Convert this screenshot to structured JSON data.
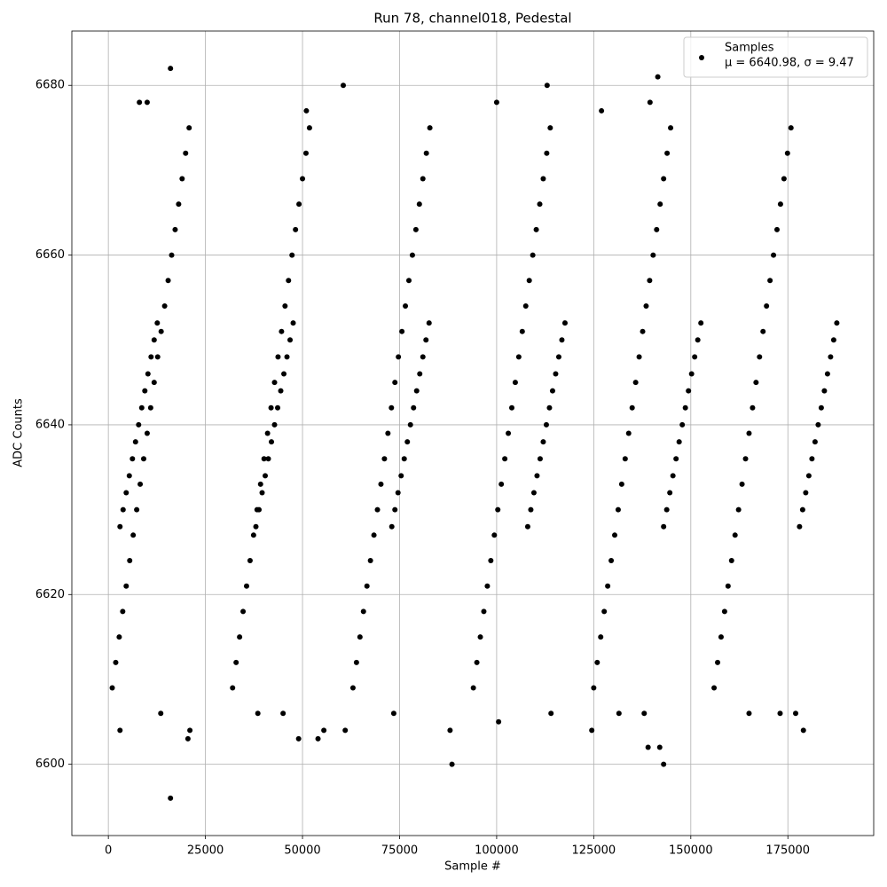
{
  "chart_data": {
    "type": "scatter",
    "title": "Run 78, channel018, Pedestal",
    "x_label": "Sample #",
    "y_label": "ADC Counts",
    "xlim": [
      -9400,
      197100
    ],
    "ylim": [
      6591.6,
      6686.4
    ],
    "xticks": [
      0,
      25000,
      50000,
      75000,
      100000,
      125000,
      150000,
      175000
    ],
    "yticks": [
      6600,
      6620,
      6640,
      6660,
      6680
    ],
    "grid": true,
    "legend": "upper right",
    "legend_note": "μ = 6640.98, σ = 9.47",
    "series": [
      {
        "name": "Samples",
        "color": "#000000",
        "x": [
          16000,
          60500,
          113000,
          141500,
          100000,
          8000,
          10000,
          139500,
          127000,
          51000,
          16000,
          88500,
          143000,
          139000,
          142000,
          20500,
          21000,
          3000,
          55500,
          61000,
          88000,
          124500,
          179000,
          49000,
          54000,
          100500,
          13500,
          38500,
          45000,
          73500,
          114000,
          131500,
          138000,
          165000,
          173000,
          177000,
          1000,
          32000,
          63000,
          94000,
          125000,
          156000,
          1900,
          32900,
          63900,
          94900,
          125900,
          156900,
          2800,
          33800,
          64800,
          95800,
          126800,
          157800,
          3700,
          34700,
          65700,
          96700,
          127700,
          158700,
          4600,
          35600,
          66600,
          97600,
          128600,
          159600,
          5500,
          36500,
          67500,
          98500,
          129500,
          160500,
          6400,
          37400,
          68400,
          99400,
          130400,
          161400,
          7300,
          38300,
          69300,
          100300,
          131300,
          162300,
          8200,
          39200,
          70200,
          101200,
          132200,
          163200,
          9100,
          40100,
          71100,
          102100,
          133100,
          164100,
          10000,
          41000,
          72000,
          103000,
          134000,
          165000,
          10900,
          41900,
          72900,
          103900,
          134900,
          165900,
          11800,
          42800,
          73800,
          104800,
          135800,
          166800,
          12700,
          43700,
          74700,
          105700,
          136700,
          167700,
          13600,
          44600,
          75600,
          106600,
          137600,
          168600,
          14500,
          45500,
          76500,
          107500,
          138500,
          169500,
          15400,
          46400,
          77400,
          108400,
          139400,
          170400,
          16300,
          47300,
          78300,
          109300,
          140300,
          171300,
          17200,
          48200,
          79200,
          110200,
          141200,
          172200,
          18100,
          49100,
          80100,
          111100,
          142100,
          173100,
          19000,
          50000,
          81000,
          112000,
          143000,
          174000,
          19900,
          50900,
          81900,
          112900,
          143900,
          174900,
          20800,
          51800,
          82800,
          113800,
          144800,
          175800,
          3000,
          38000,
          73000,
          108000,
          143000,
          178000,
          3800,
          38800,
          73800,
          108800,
          143800,
          178800,
          4600,
          39600,
          74600,
          109600,
          144600,
          179600,
          5400,
          40400,
          75400,
          110400,
          145400,
          180400,
          6200,
          41200,
          76200,
          111200,
          146200,
          181200,
          7000,
          42000,
          77000,
          112000,
          147000,
          182000,
          7800,
          42800,
          77800,
          112800,
          147800,
          182800,
          8600,
          43600,
          78600,
          113600,
          148600,
          183600,
          9400,
          44400,
          79400,
          114400,
          149400,
          184400,
          10200,
          45200,
          80200,
          115200,
          150200,
          185200,
          11000,
          46000,
          81000,
          116000,
          151000,
          186000,
          11800,
          46800,
          81800,
          116800,
          151800,
          186800,
          12600,
          47600,
          82600,
          117600,
          152600,
          187600
        ],
        "values": [
          6682,
          6680,
          6680,
          6681,
          6678,
          6678,
          6678,
          6678,
          6677,
          6677,
          6596,
          6600,
          6600,
          6602,
          6602,
          6603,
          6604,
          6604,
          6604,
          6604,
          6604,
          6604,
          6604,
          6603,
          6603,
          6605,
          6606,
          6606,
          6606,
          6606,
          6606,
          6606,
          6606,
          6606,
          6606,
          6606,
          6609,
          6609,
          6609,
          6609,
          6609,
          6609,
          6612,
          6612,
          6612,
          6612,
          6612,
          6612,
          6615,
          6615,
          6615,
          6615,
          6615,
          6615,
          6618,
          6618,
          6618,
          6618,
          6618,
          6618,
          6621,
          6621,
          6621,
          6621,
          6621,
          6621,
          6624,
          6624,
          6624,
          6624,
          6624,
          6624,
          6627,
          6627,
          6627,
          6627,
          6627,
          6627,
          6630,
          6630,
          6630,
          6630,
          6630,
          6630,
          6633,
          6633,
          6633,
          6633,
          6633,
          6633,
          6636,
          6636,
          6636,
          6636,
          6636,
          6636,
          6639,
          6639,
          6639,
          6639,
          6639,
          6639,
          6642,
          6642,
          6642,
          6642,
          6642,
          6642,
          6645,
          6645,
          6645,
          6645,
          6645,
          6645,
          6648,
          6648,
          6648,
          6648,
          6648,
          6648,
          6651,
          6651,
          6651,
          6651,
          6651,
          6651,
          6654,
          6654,
          6654,
          6654,
          6654,
          6654,
          6657,
          6657,
          6657,
          6657,
          6657,
          6657,
          6660,
          6660,
          6660,
          6660,
          6660,
          6660,
          6663,
          6663,
          6663,
          6663,
          6663,
          6663,
          6666,
          6666,
          6666,
          6666,
          6666,
          6666,
          6669,
          6669,
          6669,
          6669,
          6669,
          6669,
          6672,
          6672,
          6672,
          6672,
          6672,
          6672,
          6675,
          6675,
          6675,
          6675,
          6675,
          6675,
          6628,
          6628,
          6628,
          6628,
          6628,
          6628,
          6630,
          6630,
          6630,
          6630,
          6630,
          6630,
          6632,
          6632,
          6632,
          6632,
          6632,
          6632,
          6634,
          6634,
          6634,
          6634,
          6634,
          6634,
          6636,
          6636,
          6636,
          6636,
          6636,
          6636,
          6638,
          6638,
          6638,
          6638,
          6638,
          6638,
          6640,
          6640,
          6640,
          6640,
          6640,
          6640,
          6642,
          6642,
          6642,
          6642,
          6642,
          6642,
          6644,
          6644,
          6644,
          6644,
          6644,
          6644,
          6646,
          6646,
          6646,
          6646,
          6646,
          6646,
          6648,
          6648,
          6648,
          6648,
          6648,
          6648,
          6650,
          6650,
          6650,
          6650,
          6650,
          6650,
          6652,
          6652,
          6652,
          6652,
          6652,
          6652
        ]
      }
    ]
  }
}
